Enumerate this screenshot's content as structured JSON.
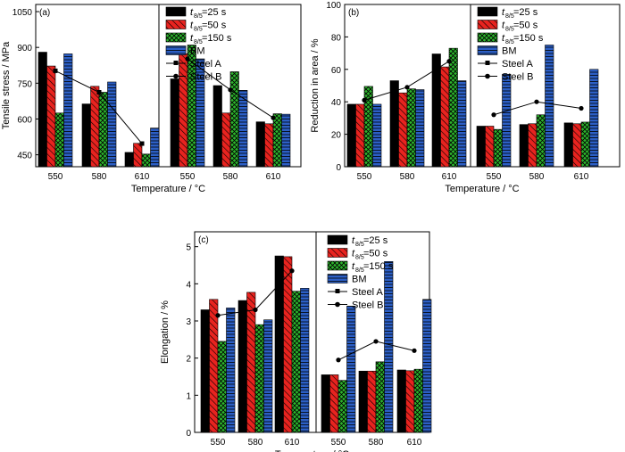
{
  "colors": {
    "t25": "#000000",
    "t50": "#e8231f",
    "t150": "#2db52d",
    "bm": "#2c5fc6"
  },
  "legend": {
    "t25": {
      "symbol": "t",
      "sub": "8/5",
      "label": "=25 s"
    },
    "t50": {
      "symbol": "t",
      "sub": "8/5",
      "label": "=50 s"
    },
    "t150": {
      "symbol": "t",
      "sub": "8/5",
      "label": "=150 s"
    },
    "bm": {
      "label": "BM"
    },
    "steelA": {
      "label": "Steel A"
    },
    "steelB": {
      "label": "Steel B"
    }
  },
  "chart_data": [
    {
      "type": "bar",
      "panel": "(a)",
      "ylabel": "Tensile stress / MPa",
      "xlabel": "Temperature / °C",
      "ylim": [
        400,
        1080
      ],
      "yticks": [
        450,
        600,
        750,
        900,
        1050
      ],
      "groups": [
        {
          "steel": "A",
          "category": "550",
          "values": [
            880,
            822,
            625,
            873
          ]
        },
        {
          "steel": "A",
          "category": "580",
          "values": [
            663,
            737,
            712,
            755
          ]
        },
        {
          "steel": "A",
          "category": "610",
          "values": [
            460,
            498,
            453,
            562
          ]
        },
        {
          "steel": "B",
          "category": "550",
          "values": [
            768,
            873,
            910,
            852
          ]
        },
        {
          "steel": "B",
          "category": "580",
          "values": [
            740,
            625,
            798,
            720
          ]
        },
        {
          "steel": "B",
          "category": "610",
          "values": [
            588,
            580,
            622,
            620
          ]
        }
      ],
      "trend": {
        "A": {
          "x": [
            "550",
            "580",
            "610"
          ],
          "y": [
            802,
            712,
            497
          ]
        },
        "B": {
          "x": [
            "550",
            "580",
            "610"
          ],
          "y": [
            852,
            722,
            605
          ]
        }
      }
    },
    {
      "type": "bar",
      "panel": "(b)",
      "ylabel": "Reduction in area / %",
      "xlabel": "Temperature / °C",
      "ylim": [
        0,
        100
      ],
      "yticks": [
        0,
        20,
        40,
        60,
        80,
        100
      ],
      "groups": [
        {
          "steel": "A",
          "category": "550",
          "values": [
            38.5,
            38.5,
            49.5,
            38.5
          ]
        },
        {
          "steel": "A",
          "category": "580",
          "values": [
            53,
            45.5,
            48,
            47.5
          ]
        },
        {
          "steel": "A",
          "category": "610",
          "values": [
            69.5,
            61.5,
            73,
            53
          ]
        },
        {
          "steel": "B",
          "category": "550",
          "values": [
            25,
            25,
            23,
            57
          ]
        },
        {
          "steel": "B",
          "category": "580",
          "values": [
            26,
            26.5,
            32,
            75
          ]
        },
        {
          "steel": "B",
          "category": "610",
          "values": [
            27,
            26.5,
            27.5,
            60
          ]
        }
      ],
      "trend": {
        "A": {
          "x": [
            "550",
            "580",
            "610"
          ],
          "y": [
            41,
            49,
            65
          ]
        },
        "B": {
          "x": [
            "550",
            "580",
            "610"
          ],
          "y": [
            32,
            40,
            36
          ]
        }
      }
    },
    {
      "type": "bar",
      "panel": "(c)",
      "ylabel": "Elongation / %",
      "xlabel": "Temperature / °C",
      "ylim": [
        0,
        5.4
      ],
      "yticks": [
        0,
        1,
        2,
        3,
        4,
        5
      ],
      "groups": [
        {
          "steel": "A",
          "category": "550",
          "values": [
            3.3,
            3.58,
            2.45,
            3.35
          ]
        },
        {
          "steel": "A",
          "category": "580",
          "values": [
            3.55,
            3.77,
            2.9,
            3.03
          ]
        },
        {
          "steel": "A",
          "category": "610",
          "values": [
            4.75,
            4.73,
            3.8,
            3.88
          ]
        },
        {
          "steel": "B",
          "category": "550",
          "values": [
            1.55,
            1.55,
            1.4,
            3.4
          ]
        },
        {
          "steel": "B",
          "category": "580",
          "values": [
            1.65,
            1.65,
            1.9,
            4.6
          ]
        },
        {
          "steel": "B",
          "category": "610",
          "values": [
            1.68,
            1.66,
            1.7,
            3.58
          ]
        }
      ],
      "trend": {
        "A": {
          "x": [
            "550",
            "580",
            "610"
          ],
          "y": [
            3.15,
            3.3,
            4.35
          ]
        },
        "B": {
          "x": [
            "550",
            "580",
            "610"
          ],
          "y": [
            1.95,
            2.45,
            2.2
          ]
        }
      }
    }
  ]
}
